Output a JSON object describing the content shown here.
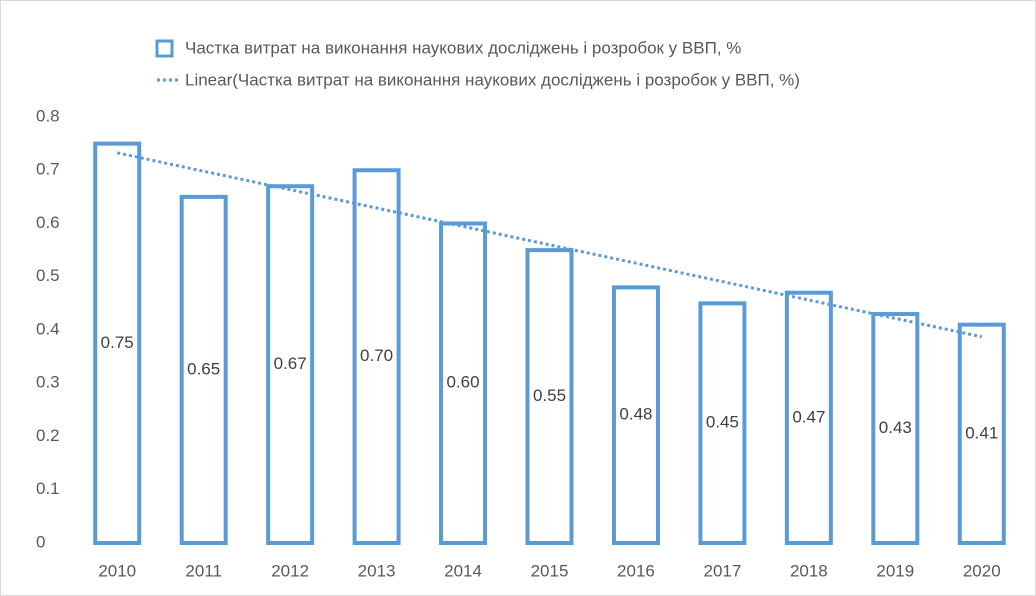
{
  "chart_data": {
    "type": "bar",
    "categories": [
      "2010",
      "2011",
      "2012",
      "2013",
      "2014",
      "2015",
      "2016",
      "2017",
      "2018",
      "2019",
      "2020"
    ],
    "series": [
      {
        "name": "Частка витрат на виконання наукових досліджень і розробок у ВВП, %",
        "color": "#5b9bd5",
        "values": [
          0.75,
          0.65,
          0.67,
          0.7,
          0.6,
          0.55,
          0.48,
          0.45,
          0.47,
          0.43,
          0.41
        ],
        "value_labels": [
          "0.75",
          "0.65",
          "0.67",
          "0.70",
          "0.60",
          "0.55",
          "0.48",
          "0.45",
          "0.47",
          "0.43",
          "0.41"
        ]
      }
    ],
    "trendline": {
      "name": "Linear(Частка витрат на виконання наукових досліджень і розробок у ВВП, %)",
      "color": "#5b9bd5",
      "type": "linear"
    },
    "ylim": [
      0,
      0.8
    ],
    "yticks": [
      0,
      0.1,
      0.2,
      0.3,
      0.4,
      0.5,
      0.6,
      0.7,
      0.8
    ],
    "grid": false,
    "legend": "top"
  }
}
